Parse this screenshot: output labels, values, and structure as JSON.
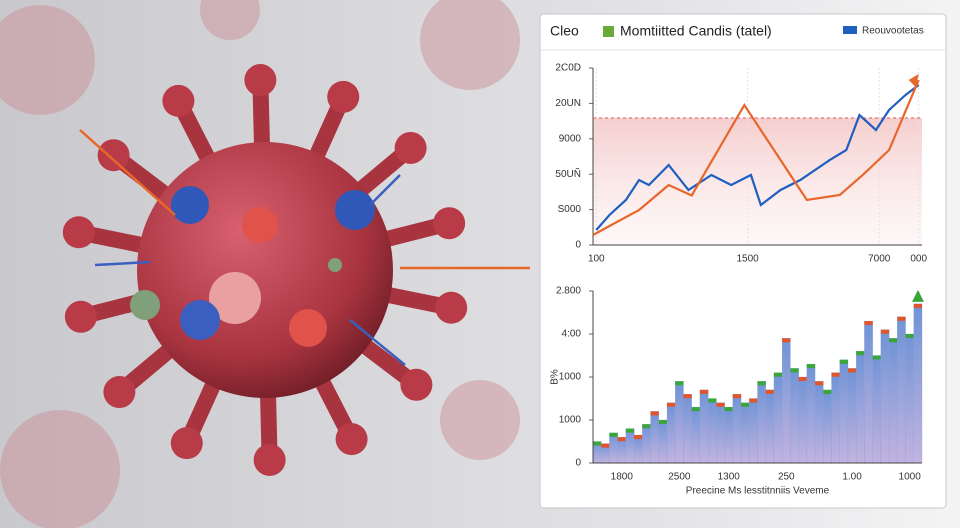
{
  "chart_data": [
    {
      "type": "line",
      "title": "Cleo",
      "xlim": [
        0,
        100
      ],
      "xticks": [
        {
          "value": 1,
          "label": "100"
        },
        {
          "value": 47,
          "label": "1500"
        },
        {
          "value": 87,
          "label": "7000"
        },
        {
          "value": 99,
          "label": "000"
        }
      ],
      "ylim": [
        0,
        2500
      ],
      "yticks": [
        0,
        {
          "value": 500,
          "label": "S000"
        },
        {
          "value": 1000,
          "label": "50UÑ"
        },
        {
          "value": 1500,
          "label": "9000"
        },
        {
          "value": 2000,
          "label": "20UN"
        },
        {
          "value": 2500,
          "label": "2C0D"
        }
      ],
      "reference_line": 1794,
      "reference_color": "#e0555a",
      "series": [
        {
          "name": "Reouvootetas",
          "color": "#1f5fbf",
          "x": [
            1,
            5,
            10,
            14,
            17,
            23,
            29,
            36,
            42,
            48,
            51,
            57,
            63,
            72,
            77,
            81,
            86,
            90,
            95,
            99
          ],
          "values": [
            212,
            424,
            636,
            918,
            847,
            1130,
            777,
            989,
            847,
            989,
            565,
            777,
            918,
            1201,
            1342,
            1836,
            1624,
            1907,
            2119,
            2260
          ]
        },
        {
          "color": "#e8662a",
          "x": [
            0,
            14,
            23,
            30,
            46,
            60,
            65,
            75,
            82,
            90,
            99
          ],
          "values": [
            141,
            494,
            847,
            700,
            1977,
            989,
            636,
            706,
            989,
            1342,
            2331
          ]
        }
      ]
    },
    {
      "type": "bar",
      "y_label": "B%",
      "x_label": "Preecine Ms lesstitnniis Veveme",
      "ylim": [
        0,
        4000
      ],
      "yticks": [
        0,
        {
          "value": 1000,
          "label": "1000"
        },
        {
          "value": 2000,
          "label": "1000"
        },
        {
          "value": 3000,
          "label": "4:00"
        },
        {
          "value": 4000,
          "label": "2.800"
        }
      ],
      "categories": [
        null,
        null,
        null,
        "1800",
        null,
        null,
        null,
        null,
        null,
        null,
        "2500",
        null,
        null,
        null,
        null,
        null,
        "1300",
        null,
        null,
        null,
        null,
        null,
        null,
        "250",
        null,
        null,
        null,
        null,
        null,
        null,
        null,
        "1.00",
        null,
        null,
        null,
        null,
        null,
        null,
        "1000",
        null
      ],
      "accent_colors": [
        "#3aa63a",
        "#e0552b"
      ],
      "series": [
        {
          "name": "Momtiitted Candis (tatel)",
          "color": "#7f9fd8",
          "values": [
            500,
            450,
            700,
            600,
            800,
            650,
            900,
            1200,
            1000,
            1400,
            1900,
            1600,
            1300,
            1700,
            1500,
            1400,
            1300,
            1600,
            1400,
            1500,
            1900,
            1700,
            2100,
            2900,
            2200,
            2000,
            2300,
            1900,
            1700,
            2100,
            2400,
            2200,
            2600,
            3300,
            2500,
            3100,
            2900,
            3400,
            3000,
            3700
          ]
        }
      ]
    }
  ]
}
